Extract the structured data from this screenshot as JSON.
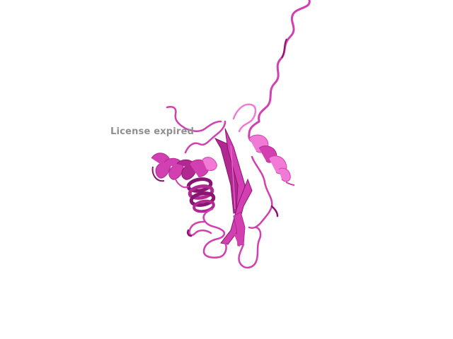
{
  "watermark": {
    "text": "License expired"
  },
  "structure": {
    "style": "cartoon",
    "colors": {
      "base": "#d23fb0",
      "dark": "#8a1472",
      "light": "#f07ad6",
      "shade": "#b02890"
    }
  }
}
